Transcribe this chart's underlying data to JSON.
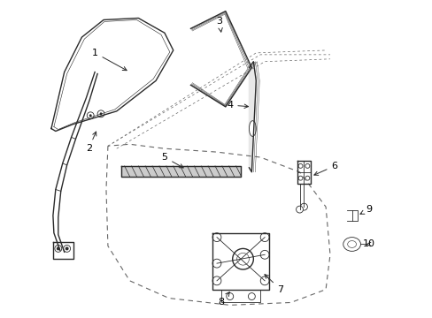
{
  "background_color": "#ffffff",
  "line_color": "#2a2a2a",
  "dashed_color": "#666666",
  "label_color": "#000000",
  "lw_main": 1.0,
  "lw_thin": 0.6,
  "label_fs": 8
}
